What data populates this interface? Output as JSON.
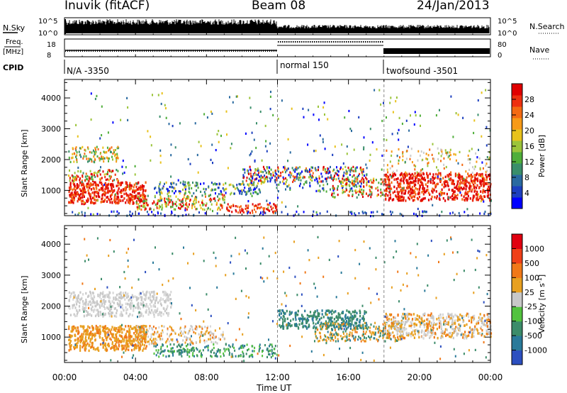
{
  "header": {
    "station": "Inuvik (fitACF)",
    "beam": "Beam 08",
    "date": "24/Jan/2013"
  },
  "noise_panel": {
    "left_label": "N.Sky",
    "left_ticks": [
      "10^5",
      "10^0"
    ],
    "right_label": "N.Search",
    "right_ticks": [
      "10^5",
      "10^0"
    ]
  },
  "freq_panel": {
    "left_label_1": "Freq.",
    "left_label_2": "[MHz]",
    "left_ticks": [
      "18",
      "8"
    ],
    "right_label": "Nave",
    "right_ticks": [
      "80",
      "0"
    ]
  },
  "cpid": {
    "label": "CPID",
    "segments": [
      {
        "name": "N/A -3350",
        "start_hour": 0
      },
      {
        "name": "normal 150",
        "start_hour": 12
      },
      {
        "name": "twofsound -3501",
        "start_hour": 18
      }
    ]
  },
  "time_axis": {
    "label": "Time UT",
    "ticks": [
      "00:00",
      "04:00",
      "08:00",
      "12:00",
      "16:00",
      "20:00",
      "00:00"
    ],
    "range_hours": [
      0,
      24
    ]
  },
  "chart_data": [
    {
      "type": "heatmap",
      "title": "Power",
      "ylabel": "Slant Range [km]",
      "y_ticks": [
        "1000",
        "2000",
        "3000",
        "4000"
      ],
      "ylim": [
        180,
        4600
      ],
      "colorbar_label": "Power [dB]",
      "colorbar_ticks": [
        "28",
        "24",
        "20",
        "16",
        "12",
        "8",
        "4"
      ],
      "colorbar_colors": [
        "#0000ff",
        "#1c3fbf",
        "#2a6aa0",
        "#3a8e6a",
        "#4fae3a",
        "#9bc43a",
        "#e8c21c",
        "#f79a17",
        "#f46a12",
        "#ee3010",
        "#e00000"
      ]
    },
    {
      "type": "heatmap",
      "title": "Velocity",
      "ylabel": "Slant Range [km]",
      "y_ticks": [
        "1000",
        "2000",
        "3000",
        "4000"
      ],
      "ylim": [
        180,
        4600
      ],
      "colorbar_label": "Velocity [m s^-1]",
      "colorbar_ticks": [
        "1000",
        "500",
        "100",
        "25",
        "-25",
        "-100",
        "-500",
        "-1000"
      ],
      "colorbar_colors": [
        "#2c4fc0",
        "#2a7a9a",
        "#3c8c6a",
        "#52c23e",
        "#c8c8c8",
        "#e8a020",
        "#f07818",
        "#f04018",
        "#e00010"
      ]
    }
  ]
}
